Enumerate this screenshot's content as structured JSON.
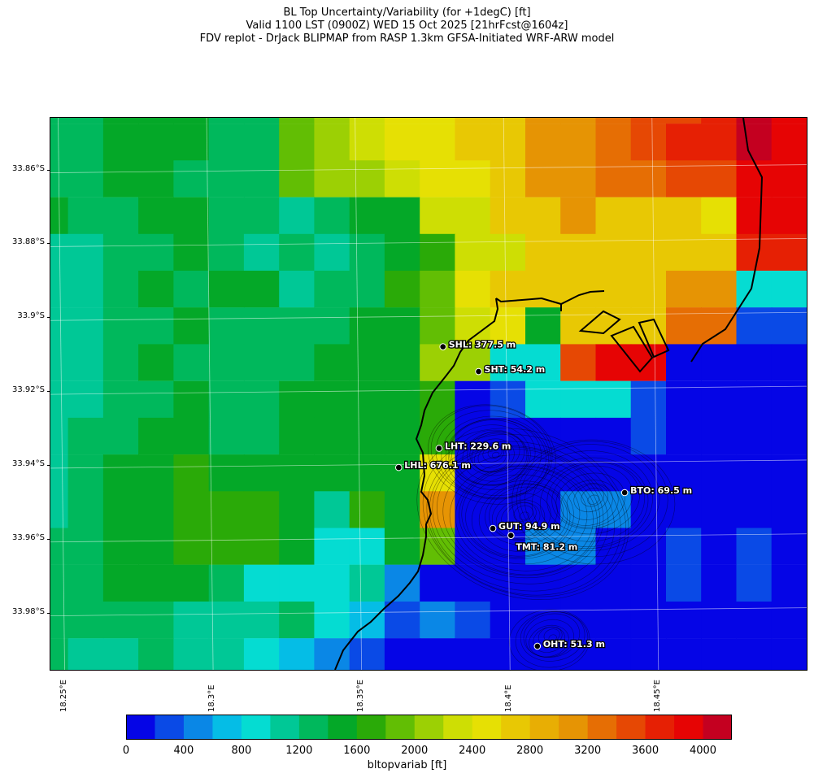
{
  "title_lines": [
    "BL Top Uncertainty/Variability (for +1degC) [ft]",
    "Valid 1100 LST (0900Z) WED 15 Oct 2025 [21hrFcst@1604z]",
    "FDV replot - DrJack BLIPMAP from RASP 1.3km GFSA-Initiated WRF-ARW model"
  ],
  "lat_labels": [
    "33.86°S",
    "33.88°S",
    "33.9°S",
    "33.92°S",
    "33.94°S",
    "33.96°S",
    "33.98°S"
  ],
  "lat_values": [
    -33.86,
    -33.88,
    -33.9,
    -33.92,
    -33.94,
    -33.96,
    -33.98
  ],
  "lon_labels": [
    "18.25°E",
    "18.3°E",
    "18.35°E",
    "18.4°E",
    "18.45°E"
  ],
  "lon_values": [
    18.25,
    18.3,
    18.35,
    18.4,
    18.45
  ],
  "lat_range": [
    -33.9955,
    -33.846
  ],
  "lon_range": [
    18.2463,
    18.501
  ],
  "stations": [
    {
      "code": "SHL",
      "label": "SHL: 377.5 m",
      "lat": -33.908,
      "lon": 18.3785
    },
    {
      "code": "SHT",
      "label": "SHT: 54.2 m",
      "lat": -33.9147,
      "lon": 18.3905
    },
    {
      "code": "LHT",
      "label": "LHT: 229.6 m",
      "lat": -33.9355,
      "lon": 18.3772
    },
    {
      "code": "LHL",
      "label": "LHL: 676.1 m",
      "lat": -33.9407,
      "lon": 18.3636
    },
    {
      "code": "BTO",
      "label": "BTO: 69.5 m",
      "lat": -33.9475,
      "lon": 18.4397
    },
    {
      "code": "GUT",
      "label": "GUT: 94.9 m",
      "lat": -33.9572,
      "lon": 18.3953
    },
    {
      "code": "TMT",
      "label": "TMT: 81.2 m",
      "lat": -33.9591,
      "lon": 18.4014
    },
    {
      "code": "OHT",
      "label": "OHT: 51.3 m",
      "lat": -33.9891,
      "lon": 18.4103
    }
  ],
  "colorbar": {
    "label": "bltopvariab [ft]",
    "min": 0,
    "max": 4200,
    "step": 200,
    "tick_labels": [
      "0",
      "400",
      "800",
      "1200",
      "1600",
      "2000",
      "2400",
      "2800",
      "3200",
      "3600",
      "4000"
    ],
    "colors": [
      "#0505e6",
      "#0a4ae6",
      "#0a87e6",
      "#05bde6",
      "#05dcd2",
      "#00c896",
      "#00b85c",
      "#04a828",
      "#2aaa08",
      "#62be04",
      "#9cd004",
      "#cede04",
      "#e6e004",
      "#e8c804",
      "#e8ae04",
      "#e69404",
      "#e66e04",
      "#e64804",
      "#e62004",
      "#e60404",
      "#c40020"
    ]
  },
  "grid_levels": [
    [
      6,
      6,
      7,
      7,
      7,
      6,
      6,
      9,
      10,
      11,
      12,
      12,
      13,
      13,
      15,
      15,
      16,
      17,
      17,
      18,
      20,
      19
    ],
    [
      6,
      6,
      7,
      7,
      7,
      6,
      6,
      9,
      10,
      11,
      12,
      12,
      13,
      13,
      15,
      15,
      16,
      17,
      18,
      18,
      20,
      19
    ],
    [
      6,
      6,
      7,
      7,
      6,
      6,
      6,
      9,
      10,
      10,
      11,
      12,
      12,
      13,
      15,
      15,
      16,
      16,
      17,
      17,
      19,
      19
    ],
    [
      7,
      6,
      6,
      7,
      7,
      6,
      6,
      5,
      6,
      7,
      7,
      11,
      11,
      13,
      13,
      15,
      13,
      13,
      13,
      12,
      19,
      19
    ],
    [
      5,
      5,
      6,
      6,
      7,
      6,
      5,
      6,
      5,
      6,
      7,
      8,
      11,
      11,
      13,
      13,
      13,
      13,
      13,
      13,
      18,
      18
    ],
    [
      5,
      5,
      6,
      7,
      6,
      7,
      7,
      5,
      6,
      6,
      8,
      9,
      12,
      13,
      13,
      13,
      13,
      13,
      15,
      15,
      4,
      4
    ],
    [
      5,
      5,
      6,
      6,
      7,
      6,
      6,
      6,
      6,
      7,
      7,
      9,
      11,
      12,
      7,
      13,
      13,
      13,
      16,
      16,
      1,
      1
    ],
    [
      5,
      5,
      6,
      7,
      6,
      6,
      6,
      6,
      7,
      7,
      7,
      10,
      10,
      4,
      4,
      17,
      19,
      19,
      0,
      0,
      0,
      0
    ],
    [
      5,
      5,
      6,
      6,
      7,
      6,
      6,
      7,
      7,
      7,
      7,
      8,
      0,
      1,
      4,
      4,
      4,
      1,
      0,
      0,
      0,
      0
    ],
    [
      5,
      6,
      6,
      7,
      7,
      6,
      6,
      7,
      7,
      7,
      7,
      8,
      0,
      0,
      0,
      0,
      0,
      1,
      0,
      0,
      0,
      0
    ],
    [
      5,
      6,
      7,
      7,
      8,
      7,
      7,
      7,
      7,
      7,
      7,
      12,
      0,
      0,
      0,
      0,
      0,
      0,
      0,
      0,
      0,
      0
    ],
    [
      5,
      6,
      7,
      7,
      8,
      8,
      8,
      7,
      5,
      8,
      7,
      15,
      0,
      0,
      0,
      2,
      2,
      0,
      0,
      0,
      0,
      0
    ],
    [
      6,
      6,
      7,
      7,
      8,
      8,
      8,
      7,
      4,
      4,
      7,
      9,
      0,
      0,
      2,
      2,
      0,
      0,
      1,
      0,
      1,
      0
    ],
    [
      6,
      6,
      7,
      7,
      7,
      6,
      4,
      4,
      4,
      5,
      2,
      0,
      0,
      0,
      0,
      0,
      0,
      0,
      1,
      0,
      1,
      0
    ],
    [
      6,
      6,
      6,
      6,
      5,
      5,
      5,
      6,
      4,
      3,
      1,
      2,
      1,
      0,
      0,
      0,
      0,
      0,
      0,
      0,
      0,
      0
    ],
    [
      6,
      5,
      5,
      6,
      5,
      5,
      4,
      3,
      2,
      1,
      0,
      0,
      0,
      0,
      0,
      0,
      0,
      0,
      0,
      0,
      0,
      0
    ]
  ]
}
